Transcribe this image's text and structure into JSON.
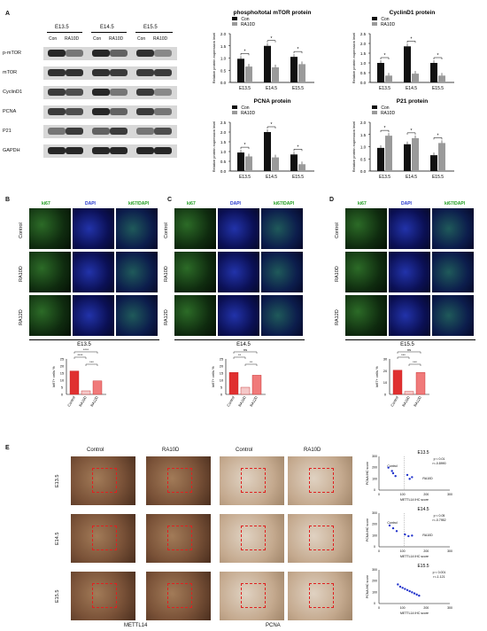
{
  "panels": {
    "A": "A",
    "B": "B",
    "C": "C",
    "D": "D",
    "E": "E"
  },
  "western": {
    "stages": [
      "E13.5",
      "E14.5",
      "E15.5"
    ],
    "lanes": [
      "Con",
      "RA10D",
      "Con",
      "RA10D",
      "Con",
      "RA10D"
    ],
    "rows": [
      "p-mTOR",
      "mTOR",
      "CyclinD1",
      "PCNA",
      "P21",
      "GAPDH"
    ]
  },
  "chart_data": [
    {
      "type": "bar",
      "title": "phospho/total mTOR protein",
      "ylabel": "Relative protein expression level",
      "categories": [
        "E13.5",
        "E14.5",
        "E15.5"
      ],
      "ylim": [
        0,
        2
      ],
      "yticks": [
        "0.0",
        "0.5",
        "1.0",
        "1.5",
        "2.0"
      ],
      "series": [
        {
          "name": "Con",
          "values": [
            0.97,
            1.5,
            1.05
          ]
        },
        {
          "name": "RA10D",
          "values": [
            0.65,
            0.62,
            0.75
          ]
        }
      ],
      "annotations": [
        "*",
        "*",
        "*"
      ],
      "legend": "top-left"
    },
    {
      "type": "bar",
      "title": "CyclinD1 protein",
      "ylabel": "Relative protein expression level",
      "categories": [
        "E13.5",
        "E14.5",
        "E15.5"
      ],
      "ylim": [
        0,
        2.5
      ],
      "yticks": [
        "0.0",
        "0.5",
        "1.0",
        "1.5",
        "2.0",
        "2.5"
      ],
      "series": [
        {
          "name": "Con",
          "values": [
            1.0,
            1.85,
            1.0
          ]
        },
        {
          "name": "RA10D",
          "values": [
            0.35,
            0.45,
            0.35
          ]
        }
      ],
      "annotations": [
        "*",
        "*",
        "*"
      ],
      "legend": "top-left"
    },
    {
      "type": "bar",
      "title": "PCNA protein",
      "ylabel": "Relative protein expression level",
      "categories": [
        "E13.5",
        "E14.5",
        "E15.5"
      ],
      "ylim": [
        0,
        2.5
      ],
      "yticks": [
        "0.0",
        "0.5",
        "1.0",
        "1.5",
        "2.0",
        "2.5"
      ],
      "series": [
        {
          "name": "Con",
          "values": [
            0.95,
            2.0,
            0.85
          ]
        },
        {
          "name": "RA10D",
          "values": [
            0.75,
            0.7,
            0.35
          ]
        }
      ],
      "annotations": [
        "*",
        "*",
        "*"
      ],
      "legend": "top-left"
    },
    {
      "type": "bar",
      "title": "P21 protein",
      "ylabel": "Relative protein expression level",
      "categories": [
        "E13.5",
        "E14.5",
        "E15.5"
      ],
      "ylim": [
        0,
        2
      ],
      "yticks": [
        "0.0",
        "0.5",
        "1.0",
        "1.5",
        "2.0"
      ],
      "series": [
        {
          "name": "Con",
          "values": [
            0.95,
            1.1,
            0.65
          ]
        },
        {
          "name": "RA10D",
          "values": [
            1.45,
            1.35,
            1.15
          ]
        }
      ],
      "annotations": [
        "*",
        "*",
        "*"
      ],
      "legend": "top-left"
    },
    {
      "type": "bar",
      "title": "E13.5",
      "ylabel": "ki67+ cells %",
      "categories": [
        "Control",
        "RA10D",
        "RA12D"
      ],
      "ylim": [
        0,
        25
      ],
      "yticks": [
        "0",
        "5",
        "10",
        "15",
        "20",
        "25"
      ],
      "values": [
        16.5,
        2.5,
        9.5
      ],
      "annotations": [
        "****",
        "****",
        "***"
      ]
    },
    {
      "type": "bar",
      "title": "E14.5",
      "ylabel": "ki67+ cells %",
      "categories": [
        "Control",
        "RA10D",
        "RA12D"
      ],
      "ylim": [
        0,
        25
      ],
      "yticks": [
        "0",
        "5",
        "10",
        "15",
        "20",
        "25"
      ],
      "values": [
        15.5,
        5.0,
        13.5
      ],
      "annotations": [
        "ns",
        "**",
        "**"
      ]
    },
    {
      "type": "bar",
      "title": "E15.5",
      "ylabel": "ki67+ cells %",
      "categories": [
        "Control",
        "RA10D",
        "RA12D"
      ],
      "ylim": [
        0,
        30
      ],
      "yticks": [
        "0",
        "10",
        "20",
        "30"
      ],
      "values": [
        20.5,
        2.5,
        18.5
      ],
      "annotations": [
        "ns",
        "***",
        "***"
      ]
    },
    {
      "type": "scatter",
      "title": "E13.5",
      "xlabel": "METTL14 IHC score",
      "ylabel": "PCNA IHC score",
      "xlim": [
        0,
        300
      ],
      "ylim": [
        0,
        300
      ],
      "xticks": [
        "0",
        "100",
        "200",
        "300"
      ],
      "yticks": [
        "0",
        "100",
        "200",
        "300"
      ],
      "stats": [
        "p < 0.01",
        "r=-0.8990"
      ],
      "labels": [
        "Control",
        "RA10D"
      ],
      "points": [
        [
          40,
          200
        ],
        [
          55,
          170
        ],
        [
          60,
          150
        ],
        [
          70,
          125
        ],
        [
          120,
          135
        ],
        [
          130,
          100
        ],
        [
          140,
          115
        ]
      ]
    },
    {
      "type": "scatter",
      "title": "E14.5",
      "xlabel": "METTL14 IHC score",
      "ylabel": "PCNA IHC score",
      "xlim": [
        0,
        300
      ],
      "ylim": [
        0,
        300
      ],
      "xticks": [
        "0",
        "100",
        "200",
        "300"
      ],
      "yticks": [
        "0",
        "100",
        "200",
        "300"
      ],
      "stats": [
        "p < 0.05",
        "r=-0.7952"
      ],
      "labels": [
        "Control",
        "RA10D"
      ],
      "points": [
        [
          45,
          190
        ],
        [
          60,
          165
        ],
        [
          75,
          140
        ],
        [
          110,
          110
        ],
        [
          125,
          95
        ],
        [
          140,
          100
        ]
      ]
    },
    {
      "type": "scatter",
      "title": "E15.5",
      "xlabel": "METTL14 IHC score",
      "ylabel": "PCNA IHC score",
      "xlim": [
        0,
        300
      ],
      "ylim": [
        0,
        300
      ],
      "xticks": [
        "0",
        "100",
        "200",
        "300"
      ],
      "yticks": [
        "0",
        "100",
        "200",
        "300"
      ],
      "stats": [
        "p < 0.001",
        "r=-1.121"
      ],
      "labels": [],
      "points": [
        [
          80,
          170
        ],
        [
          90,
          150
        ],
        [
          100,
          140
        ],
        [
          110,
          130
        ],
        [
          120,
          120
        ],
        [
          130,
          110
        ],
        [
          140,
          100
        ],
        [
          150,
          90
        ],
        [
          160,
          80
        ],
        [
          170,
          70
        ]
      ]
    }
  ],
  "ki67": {
    "headers": [
      "ki67",
      "DAPI",
      "ki67/DAPI"
    ],
    "rows": [
      "Control",
      "RA10D",
      "RA12D"
    ]
  },
  "ihc": {
    "col_headers": [
      "Control",
      "RA10D",
      "Control",
      "RA10D"
    ],
    "row_labels": [
      "E13.5",
      "E14.5",
      "E15.5"
    ],
    "footer": [
      "METTL14",
      "PCNA"
    ]
  },
  "colors": {
    "con": "#111111",
    "ra": "#9a9a9a",
    "ctrlbar": "#e03030",
    "ra10": "#f4c8c8",
    "ra12": "#f07a7a",
    "scatter": "#2233cc"
  }
}
